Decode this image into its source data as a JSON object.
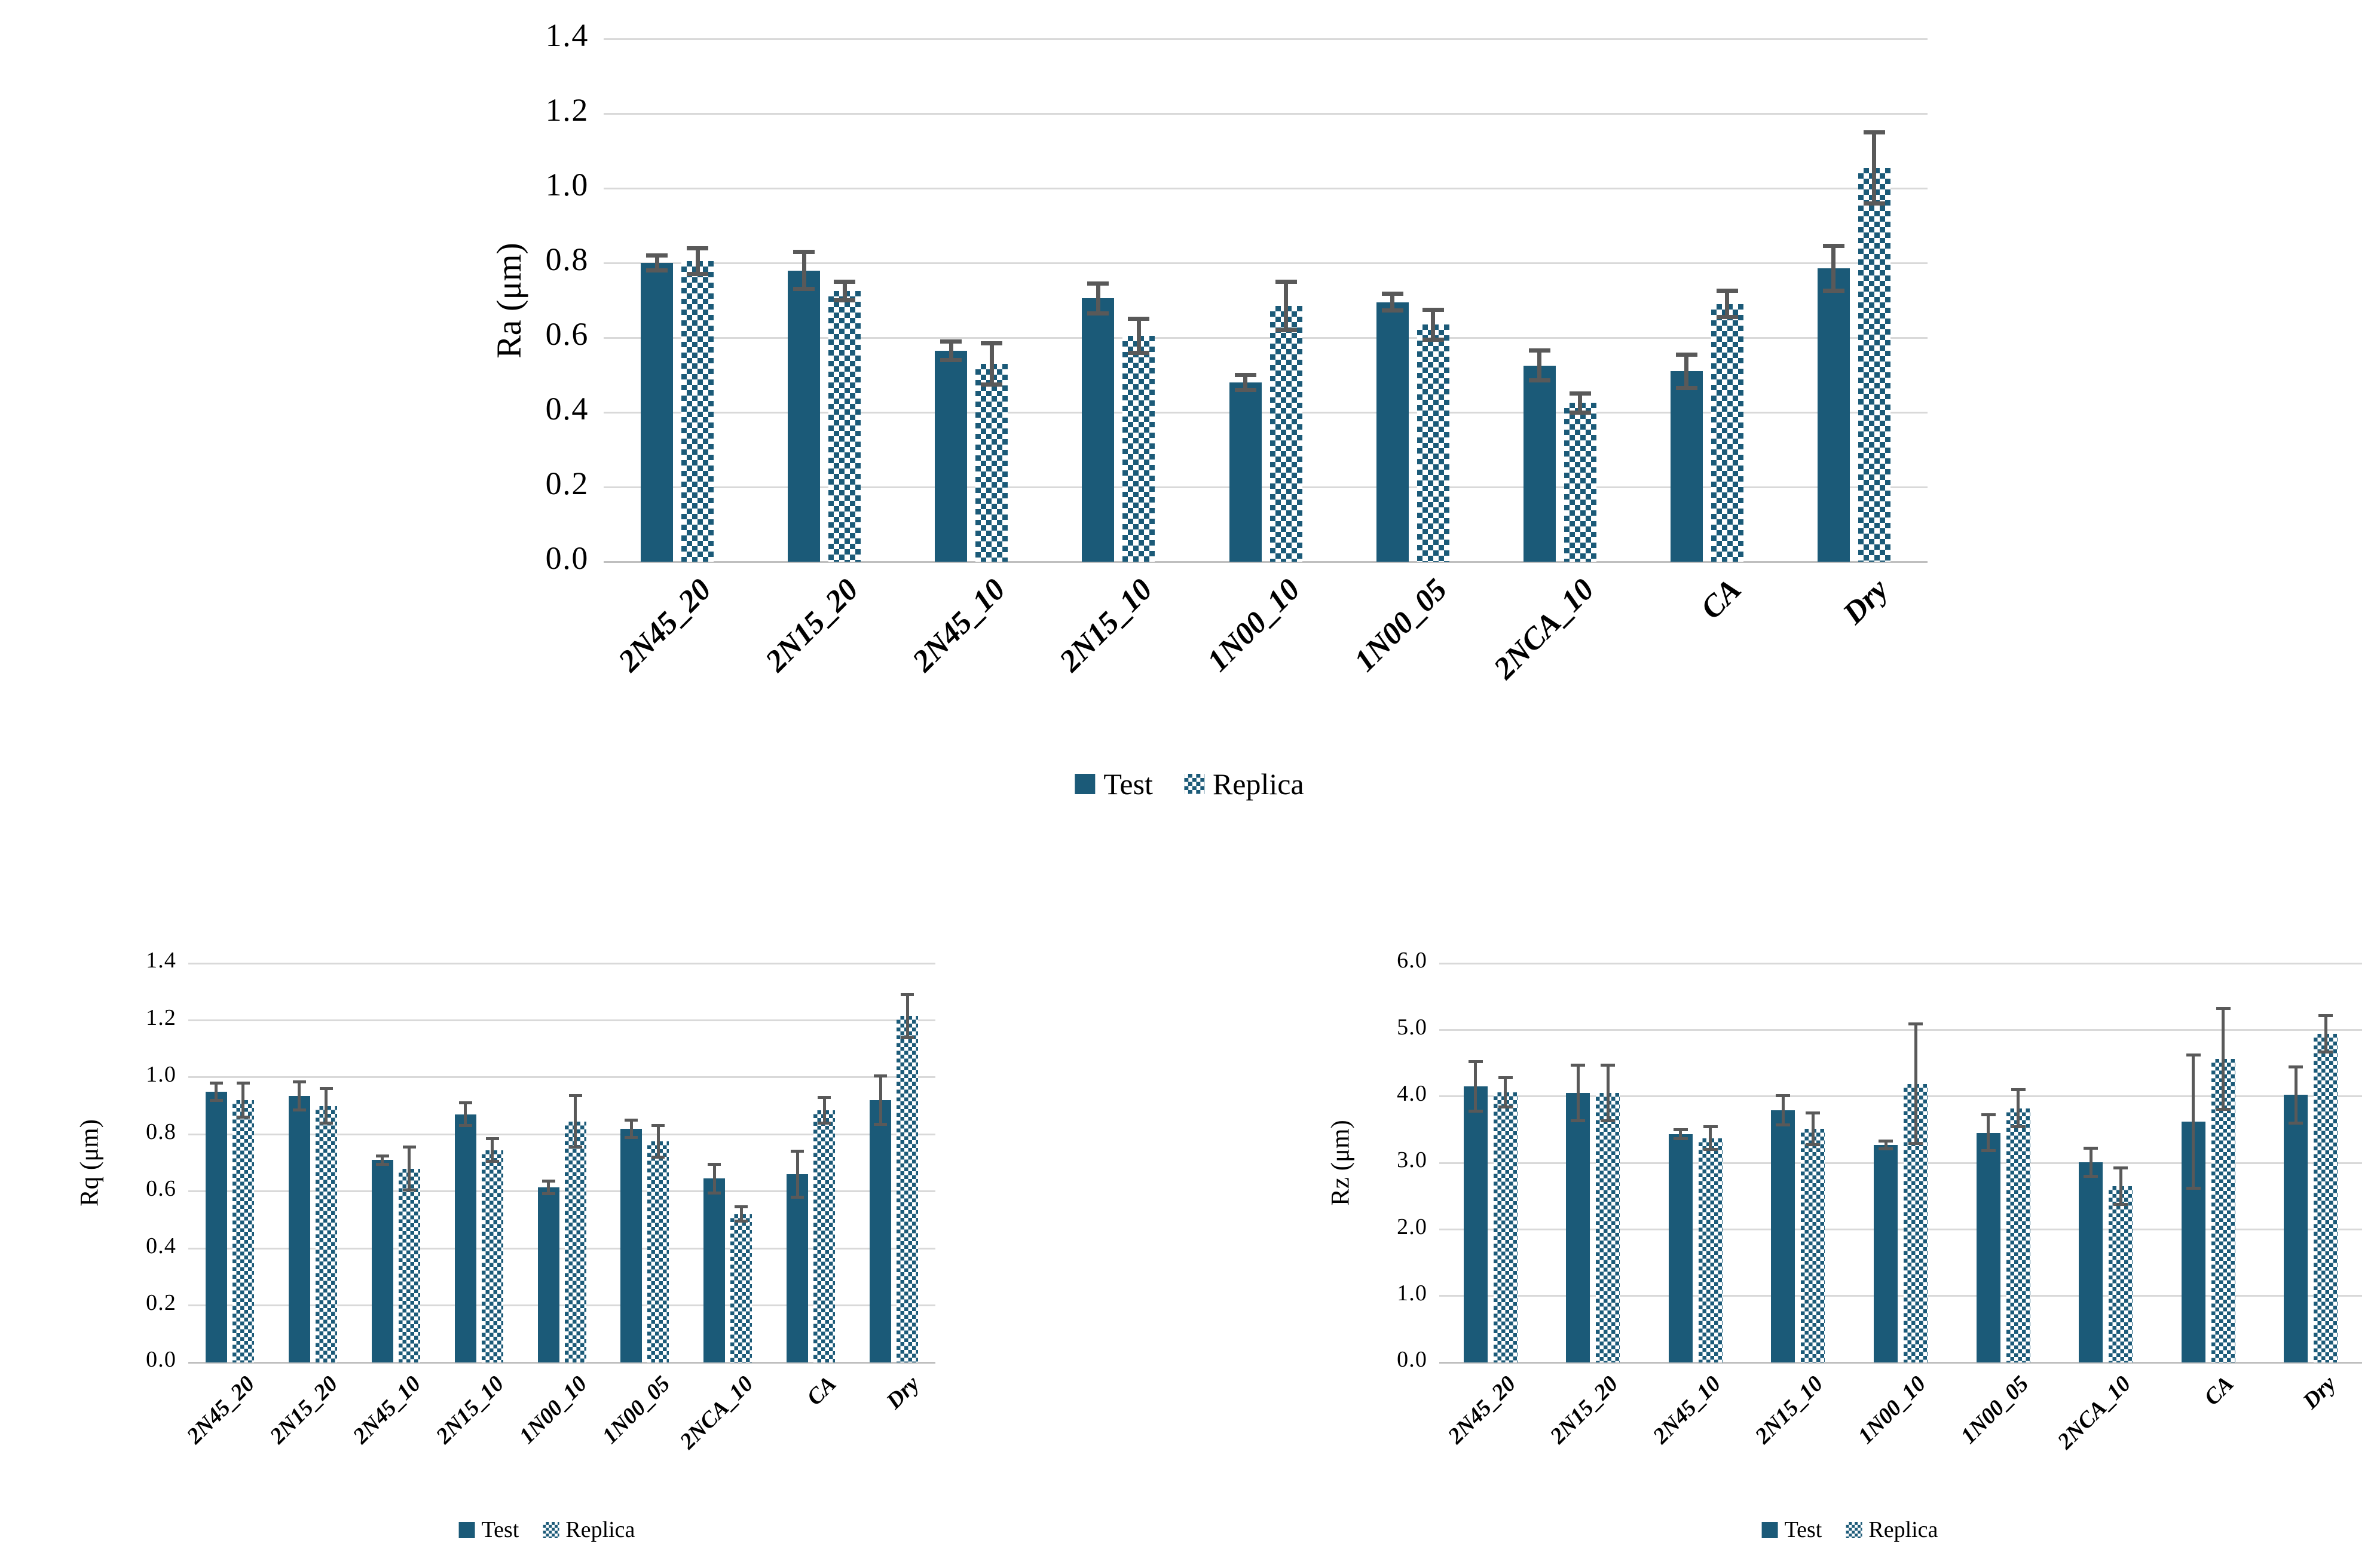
{
  "figure": {
    "background": "#ffffff",
    "description": "Three grouped bar charts comparing surface roughness (Ra, Rq, Rz) of Test vs Replica specimens"
  },
  "colors": {
    "bar_teal": "#1b5a78",
    "error_bar": "#595959",
    "gridline": "#d9d9d9",
    "axis_line": "#bfbfbf",
    "text": "#000000"
  },
  "chart_data": [
    {
      "type": "bar",
      "title": "",
      "xlabel": "",
      "ylabel": "Ra (μm)",
      "ymax": 1.4,
      "ystep": 0.2,
      "decimals": 1,
      "grid": true,
      "legend_position": "bottom",
      "error_bars": true,
      "categories": [
        "2N45_20",
        "2N15_20",
        "2N45_10",
        "2N15_10",
        "1N00_10",
        "1N00_05",
        "2NCA_10",
        "CA",
        "Dry"
      ],
      "series": [
        {
          "name": "Test",
          "pattern": "solid",
          "values": [
            0.8,
            0.78,
            0.565,
            0.705,
            0.48,
            0.695,
            0.525,
            0.51,
            0.785
          ],
          "errors": [
            0.02,
            0.05,
            0.025,
            0.04,
            0.02,
            0.022,
            0.04,
            0.045,
            0.06
          ]
        },
        {
          "name": "Replica",
          "pattern": "checker",
          "values": [
            0.805,
            0.725,
            0.53,
            0.605,
            0.685,
            0.635,
            0.425,
            0.69,
            1.055
          ],
          "errors": [
            0.035,
            0.025,
            0.055,
            0.045,
            0.065,
            0.04,
            0.025,
            0.035,
            0.095
          ]
        }
      ]
    },
    {
      "type": "bar",
      "title": "",
      "xlabel": "",
      "ylabel": "Rq (μm)",
      "ymax": 1.4,
      "ystep": 0.2,
      "decimals": 1,
      "grid": true,
      "legend_position": "bottom",
      "error_bars": true,
      "categories": [
        "2N45_20",
        "2N15_20",
        "2N45_10",
        "2N15_10",
        "1N00_10",
        "1N00_05",
        "2NCA_10",
        "CA",
        "Dry"
      ],
      "series": [
        {
          "name": "Test",
          "pattern": "solid",
          "values": [
            0.95,
            0.935,
            0.71,
            0.87,
            0.615,
            0.82,
            0.645,
            0.66,
            0.92
          ],
          "errors": [
            0.03,
            0.05,
            0.015,
            0.04,
            0.022,
            0.03,
            0.05,
            0.08,
            0.085
          ]
        },
        {
          "name": "Replica",
          "pattern": "checker",
          "values": [
            0.92,
            0.9,
            0.68,
            0.745,
            0.845,
            0.775,
            0.52,
            0.885,
            1.215
          ],
          "errors": [
            0.06,
            0.06,
            0.075,
            0.04,
            0.09,
            0.055,
            0.025,
            0.045,
            0.075
          ]
        }
      ]
    },
    {
      "type": "bar",
      "title": "",
      "xlabel": "",
      "ylabel": "Rz (μm)",
      "ymax": 6.0,
      "ystep": 1.0,
      "decimals": 1,
      "grid": true,
      "legend_position": "bottom",
      "error_bars": true,
      "categories": [
        "2N45_20",
        "2N15_20",
        "2N45_10",
        "2N15_10",
        "1N00_10",
        "1N00_05",
        "2NCA_10",
        "CA",
        "Dry"
      ],
      "series": [
        {
          "name": "Test",
          "pattern": "solid",
          "values": [
            4.15,
            4.05,
            3.43,
            3.79,
            3.27,
            3.45,
            3.01,
            3.62,
            4.02
          ],
          "errors": [
            0.37,
            0.42,
            0.07,
            0.22,
            0.06,
            0.27,
            0.21,
            1.0,
            0.42
          ]
        },
        {
          "name": "Replica",
          "pattern": "checker",
          "values": [
            4.06,
            4.05,
            3.37,
            3.51,
            4.19,
            3.82,
            2.65,
            4.56,
            4.94
          ],
          "errors": [
            0.22,
            0.42,
            0.17,
            0.24,
            0.9,
            0.28,
            0.27,
            0.76,
            0.27
          ]
        }
      ]
    }
  ]
}
